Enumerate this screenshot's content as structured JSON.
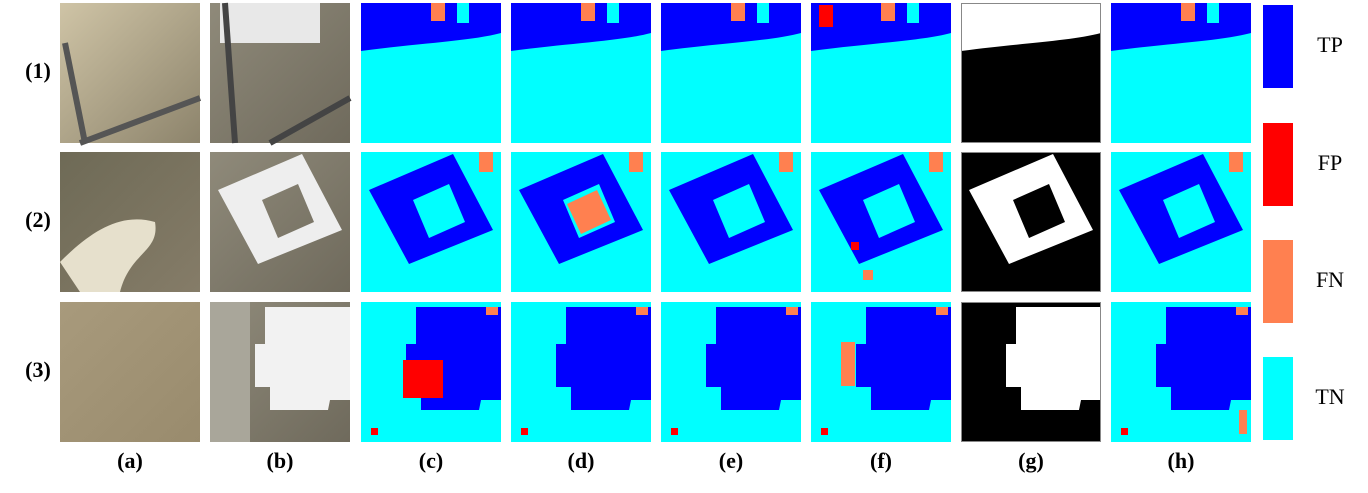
{
  "row_labels": [
    "(1)",
    "(2)",
    "(3)"
  ],
  "column_labels": [
    "(a)",
    "(b)",
    "(c)",
    "(d)",
    "(e)",
    "(f)",
    "(g)",
    "(h)"
  ],
  "legend": [
    {
      "label": "TP",
      "color": "#0000ff"
    },
    {
      "label": "FP",
      "color": "#ff0000"
    },
    {
      "label": "FN",
      "color": "#ff8050"
    },
    {
      "label": "TN",
      "color": "#00ffff"
    }
  ]
}
